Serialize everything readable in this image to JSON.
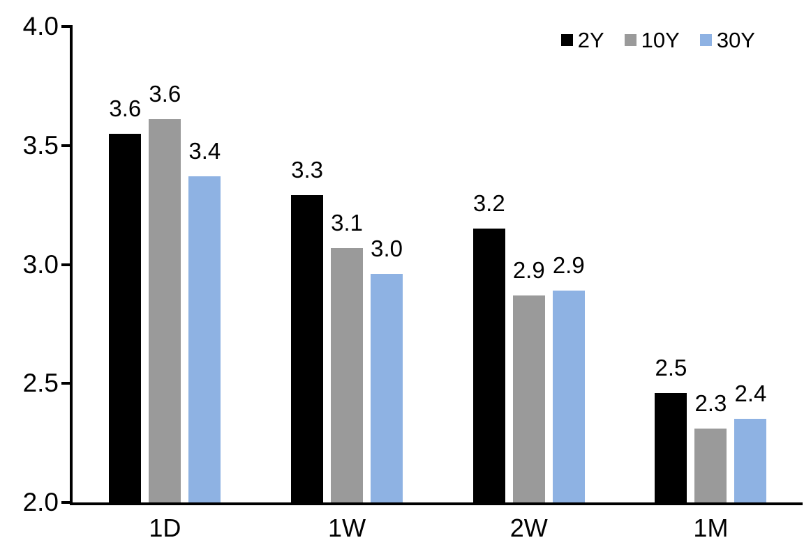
{
  "chart_data": {
    "type": "bar",
    "title": "",
    "xlabel": "",
    "ylabel": "",
    "categories": [
      "1D",
      "1W",
      "2W",
      "1M"
    ],
    "series": [
      {
        "name": "2Y",
        "color": "#000000",
        "values": [
          3.6,
          3.3,
          3.2,
          2.5
        ],
        "labels": [
          "3.6",
          "3.3",
          "3.2",
          "2.5"
        ],
        "values_precise": [
          3.55,
          3.29,
          3.15,
          2.46
        ]
      },
      {
        "name": "10Y",
        "color": "#9a9a9a",
        "values": [
          3.6,
          3.1,
          2.9,
          2.3
        ],
        "labels": [
          "3.6",
          "3.1",
          "2.9",
          "2.3"
        ],
        "values_precise": [
          3.61,
          3.07,
          2.87,
          2.31
        ]
      },
      {
        "name": "30Y",
        "color": "#8eb2e3",
        "values": [
          3.4,
          3.0,
          2.9,
          2.4
        ],
        "labels": [
          "3.4",
          "3.0",
          "2.9",
          "2.4"
        ],
        "values_precise": [
          3.37,
          2.96,
          2.89,
          2.35
        ]
      }
    ],
    "ylim": [
      2.0,
      4.0
    ],
    "yticks": [
      "2.0",
      "2.5",
      "3.0",
      "3.5",
      "4.0"
    ],
    "grid": false,
    "legend_position": "top-right",
    "colors": {
      "axis": "#000000",
      "background": "#ffffff",
      "text": "#000000"
    }
  }
}
